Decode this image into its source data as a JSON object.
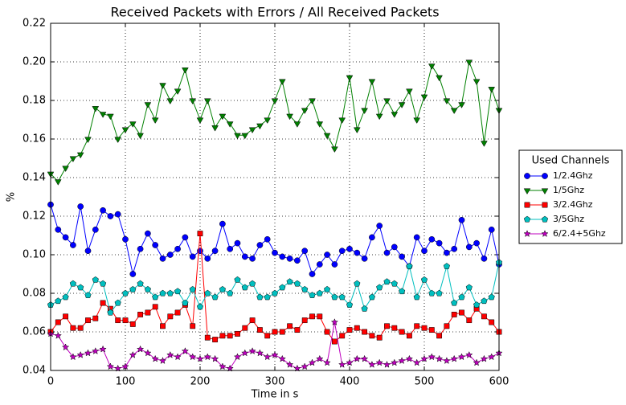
{
  "chart_data": {
    "type": "line",
    "title": "Received Packets with Errors / All Received Packets",
    "xlabel": "Time in s",
    "ylabel": "%",
    "x": [
      0,
      10,
      20,
      30,
      40,
      50,
      60,
      70,
      80,
      90,
      100,
      110,
      120,
      130,
      140,
      150,
      160,
      170,
      180,
      190,
      200,
      210,
      220,
      230,
      240,
      250,
      260,
      270,
      280,
      290,
      300,
      310,
      320,
      330,
      340,
      350,
      360,
      370,
      380,
      390,
      400,
      410,
      420,
      430,
      440,
      450,
      460,
      470,
      480,
      490,
      500,
      510,
      520,
      530,
      540,
      550,
      560,
      570,
      580,
      590,
      600
    ],
    "series": [
      {
        "name": "1/2.4Ghz",
        "color": "#0000ff",
        "marker": "circle",
        "values": [
          0.126,
          0.113,
          0.109,
          0.105,
          0.125,
          0.102,
          0.113,
          0.123,
          0.12,
          0.121,
          0.108,
          0.09,
          0.103,
          0.111,
          0.105,
          0.098,
          0.1,
          0.103,
          0.109,
          0.099,
          0.102,
          0.098,
          0.102,
          0.116,
          0.103,
          0.106,
          0.099,
          0.098,
          0.105,
          0.108,
          0.101,
          0.099,
          0.098,
          0.097,
          0.102,
          0.09,
          0.095,
          0.1,
          0.095,
          0.102,
          0.103,
          0.101,
          0.098,
          0.109,
          0.115,
          0.101,
          0.104,
          0.099,
          0.094,
          0.109,
          0.102,
          0.108,
          0.106,
          0.101,
          0.103,
          0.118,
          0.104,
          0.106,
          0.098,
          0.113,
          0.095
        ]
      },
      {
        "name": "1/5Ghz",
        "color": "#008000",
        "marker": "triangle-down",
        "values": [
          0.142,
          0.138,
          0.145,
          0.15,
          0.152,
          0.16,
          0.176,
          0.173,
          0.172,
          0.16,
          0.165,
          0.168,
          0.162,
          0.178,
          0.17,
          0.188,
          0.18,
          0.185,
          0.196,
          0.18,
          0.17,
          0.18,
          0.166,
          0.172,
          0.168,
          0.162,
          0.162,
          0.165,
          0.167,
          0.17,
          0.18,
          0.19,
          0.172,
          0.168,
          0.175,
          0.18,
          0.168,
          0.162,
          0.155,
          0.17,
          0.192,
          0.165,
          0.175,
          0.19,
          0.172,
          0.18,
          0.173,
          0.178,
          0.185,
          0.17,
          0.182,
          0.198,
          0.192,
          0.18,
          0.175,
          0.178,
          0.2,
          0.19,
          0.158,
          0.186,
          0.175
        ]
      },
      {
        "name": "3/2.4Ghz",
        "color": "#ff0000",
        "marker": "square",
        "values": [
          0.06,
          0.065,
          0.068,
          0.062,
          0.062,
          0.066,
          0.067,
          0.075,
          0.072,
          0.066,
          0.066,
          0.064,
          0.069,
          0.07,
          0.073,
          0.063,
          0.068,
          0.07,
          0.074,
          0.063,
          0.111,
          0.057,
          0.056,
          0.058,
          0.058,
          0.059,
          0.062,
          0.066,
          0.061,
          0.058,
          0.06,
          0.06,
          0.063,
          0.061,
          0.066,
          0.068,
          0.068,
          0.06,
          0.055,
          0.058,
          0.061,
          0.062,
          0.06,
          0.058,
          0.057,
          0.063,
          0.062,
          0.06,
          0.058,
          0.063,
          0.062,
          0.061,
          0.058,
          0.063,
          0.069,
          0.07,
          0.066,
          0.072,
          0.068,
          0.065,
          0.06
        ]
      },
      {
        "name": "3/5Ghz",
        "color": "#00bfbf",
        "marker": "pentagon",
        "values": [
          0.074,
          0.076,
          0.078,
          0.085,
          0.083,
          0.079,
          0.087,
          0.085,
          0.07,
          0.075,
          0.08,
          0.082,
          0.085,
          0.082,
          0.078,
          0.08,
          0.08,
          0.081,
          0.075,
          0.082,
          0.073,
          0.08,
          0.078,
          0.082,
          0.08,
          0.087,
          0.083,
          0.085,
          0.078,
          0.078,
          0.08,
          0.083,
          0.086,
          0.085,
          0.082,
          0.079,
          0.08,
          0.082,
          0.078,
          0.078,
          0.074,
          0.085,
          0.072,
          0.078,
          0.083,
          0.086,
          0.085,
          0.081,
          0.094,
          0.078,
          0.087,
          0.08,
          0.08,
          0.094,
          0.075,
          0.078,
          0.083,
          0.074,
          0.076,
          0.078,
          0.096
        ]
      },
      {
        "name": "6/2.4+5Ghz",
        "color": "#bf00bf",
        "marker": "star",
        "values": [
          0.059,
          0.058,
          0.052,
          0.047,
          0.048,
          0.049,
          0.05,
          0.051,
          0.042,
          0.041,
          0.042,
          0.048,
          0.051,
          0.049,
          0.046,
          0.045,
          0.048,
          0.047,
          0.05,
          0.047,
          0.046,
          0.047,
          0.046,
          0.042,
          0.041,
          0.047,
          0.049,
          0.05,
          0.049,
          0.047,
          0.048,
          0.046,
          0.043,
          0.041,
          0.042,
          0.044,
          0.046,
          0.044,
          0.065,
          0.043,
          0.044,
          0.046,
          0.046,
          0.043,
          0.044,
          0.043,
          0.044,
          0.045,
          0.046,
          0.044,
          0.046,
          0.047,
          0.046,
          0.045,
          0.046,
          0.047,
          0.048,
          0.044,
          0.046,
          0.047,
          0.049
        ]
      }
    ],
    "xlim": [
      0,
      600
    ],
    "xticks": [
      0,
      100,
      200,
      300,
      400,
      500,
      600
    ],
    "ylim": [
      0.04,
      0.22
    ],
    "yticks": [
      0.04,
      0.06,
      0.08,
      {
        "value": 0.1,
        "label": "0.10"
      },
      0.12,
      0.14,
      0.16,
      0.18,
      {
        "value": 0.2,
        "label": "0.20"
      },
      0.22
    ],
    "grid": true,
    "legend": {
      "title": "Used Channels",
      "loc": "center right outside"
    }
  }
}
